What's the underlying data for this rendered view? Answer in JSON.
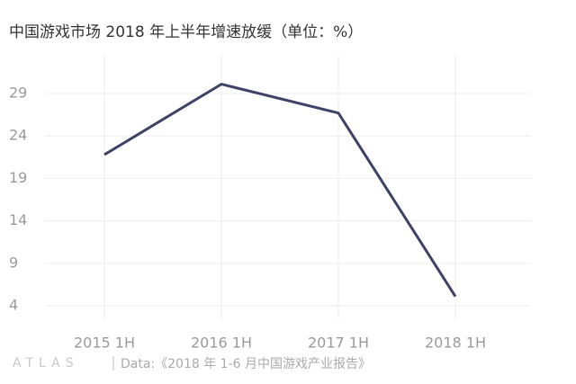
{
  "chart_data": {
    "type": "line",
    "title": "中国游戏市场 2018 年上半年增速放缓（单位：%）",
    "categories": [
      "2015 1H",
      "2016 1H",
      "2017 1H",
      "2018 1H"
    ],
    "values": [
      21.8,
      30.1,
      26.7,
      5.1
    ],
    "color": "#3d4266",
    "ylim": [
      2.5,
      33.5
    ],
    "yticks": [
      4,
      9,
      14,
      19,
      24,
      29
    ],
    "grid": true,
    "logo": "ATLAS",
    "source": "Data:《2018 年 1-6 月中国游戏产业报告》"
  }
}
